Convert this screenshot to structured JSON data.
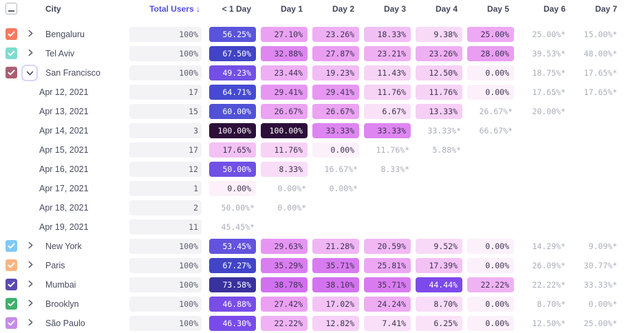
{
  "header": {
    "select_all_state": "indeterminate",
    "city_col": "City",
    "total_col": "Total Users ↓",
    "day_cols": [
      "< 1 Day",
      "Day 1",
      "Day 2",
      "Day 3",
      "Day 4",
      "Day 5",
      "Day 6",
      "Day 7"
    ]
  },
  "rows": [
    {
      "kind": "city",
      "label": "Bengaluru",
      "checked": true,
      "expanded": false,
      "checkbox_color": "#f4795f",
      "total": "100%",
      "cells": [
        "56.25%",
        "27.10%",
        "23.26%",
        "18.33%",
        "9.38%",
        "25.00%",
        "25.00%*",
        "15.00%*"
      ]
    },
    {
      "kind": "city",
      "label": "Tel Aviv",
      "checked": true,
      "expanded": false,
      "checkbox_color": "#7edcd0",
      "total": "100%",
      "cells": [
        "67.50%",
        "32.88%",
        "27.87%",
        "23.21%",
        "23.26%",
        "28.00%",
        "39.53%*",
        "48.00%*"
      ]
    },
    {
      "kind": "city",
      "label": "San Francisco",
      "checked": true,
      "expanded": true,
      "checkbox_color": "#aa5e74",
      "total": "100%",
      "cells": [
        "49.23%",
        "23.44%",
        "19.23%",
        "11.43%",
        "12.50%",
        "0.00%",
        "18.75%*",
        "17.65%*"
      ]
    },
    {
      "kind": "date",
      "label": "Apr 12, 2021",
      "total": "17",
      "cells": [
        "64.71%",
        "29.41%",
        "29.41%",
        "11.76%",
        "11.76%",
        "0.00%",
        "17.65%*",
        "17.65%*"
      ]
    },
    {
      "kind": "date",
      "label": "Apr 13, 2021",
      "total": "15",
      "cells": [
        "60.00%",
        "26.67%",
        "26.67%",
        "6.67%",
        "13.33%",
        "26.67%*",
        "20.00%*",
        null
      ]
    },
    {
      "kind": "date",
      "label": "Apr 14, 2021",
      "total": "3",
      "cells": [
        "100.00%",
        "100.00%",
        "33.33%",
        "33.33%",
        "33.33%*",
        "66.67%*",
        null,
        null
      ]
    },
    {
      "kind": "date",
      "label": "Apr 15, 2021",
      "total": "17",
      "cells": [
        "17.65%",
        "11.76%",
        "0.00%",
        "11.76%*",
        "5.88%*",
        null,
        null,
        null
      ]
    },
    {
      "kind": "date",
      "label": "Apr 16, 2021",
      "total": "12",
      "cells": [
        "50.00%",
        "8.33%",
        "16.67%*",
        "8.33%*",
        null,
        null,
        null,
        null
      ]
    },
    {
      "kind": "date",
      "label": "Apr 17, 2021",
      "total": "1",
      "cells": [
        "0.00%",
        "0.00%*",
        "0.00%*",
        null,
        null,
        null,
        null,
        null
      ]
    },
    {
      "kind": "date",
      "label": "Apr 18, 2021",
      "total": "2",
      "cells": [
        "50.00%*",
        "0.00%*",
        null,
        null,
        null,
        null,
        null,
        null
      ]
    },
    {
      "kind": "date",
      "label": "Apr 19, 2021",
      "total": "11",
      "cells": [
        "45.45%*",
        null,
        null,
        null,
        null,
        null,
        null,
        null
      ]
    },
    {
      "kind": "city",
      "label": "New York",
      "checked": true,
      "expanded": false,
      "checkbox_color": "#7ec9f5",
      "total": "100%",
      "cells": [
        "53.45%",
        "29.63%",
        "21.28%",
        "20.59%",
        "9.52%",
        "0.00%",
        "14.29%*",
        "9.09%*"
      ]
    },
    {
      "kind": "city",
      "label": "Paris",
      "checked": true,
      "expanded": false,
      "checkbox_color": "#f9b581",
      "total": "100%",
      "cells": [
        "67.27%",
        "35.29%",
        "35.71%",
        "25.81%",
        "17.39%",
        "0.00%",
        "26.09%*",
        "30.77%*"
      ]
    },
    {
      "kind": "city",
      "label": "Mumbai",
      "checked": true,
      "expanded": false,
      "checkbox_color": "#5a4ab3",
      "total": "100%",
      "cells": [
        "73.58%",
        "38.78%",
        "38.10%",
        "35.71%",
        "44.44%",
        "22.22%",
        "22.22%*",
        "33.33%*"
      ]
    },
    {
      "kind": "city",
      "label": "Brooklyn",
      "checked": true,
      "expanded": false,
      "checkbox_color": "#40b06a",
      "total": "100%",
      "cells": [
        "46.88%",
        "27.42%",
        "17.02%",
        "24.24%",
        "8.70%",
        "0.00%",
        "8.70%*",
        "0.00%*"
      ]
    },
    {
      "kind": "city",
      "label": "São Paulo",
      "checked": true,
      "expanded": false,
      "checkbox_color": "#c78ce8",
      "total": "100%",
      "cells": [
        "46.30%",
        "22.22%",
        "12.82%",
        "7.41%",
        "6.25%",
        "0.00%",
        "12.50%*",
        "25.00%*"
      ]
    }
  ],
  "heatmap": {
    "white_text_min": 43.9,
    "stops": [
      [
        0,
        "#fcf1fb"
      ],
      [
        5,
        "#fae6f9"
      ],
      [
        10,
        "#f8d8f7"
      ],
      [
        15,
        "#f5c9f5"
      ],
      [
        20,
        "#f1baf4"
      ],
      [
        24,
        "#eeadf3"
      ],
      [
        28,
        "#ea9ef2"
      ],
      [
        32,
        "#e18af1"
      ],
      [
        36,
        "#d87af0"
      ],
      [
        40,
        "#cf6cef"
      ],
      [
        43.99,
        "#c864ee"
      ],
      [
        44,
        "#7d49ec"
      ],
      [
        48,
        "#764fe7"
      ],
      [
        52,
        "#6952e0"
      ],
      [
        56,
        "#5a54da"
      ],
      [
        61,
        "#4f51d5"
      ],
      [
        66,
        "#4348cf"
      ],
      [
        70,
        "#3d3cb4"
      ],
      [
        74,
        "#39309a"
      ],
      [
        85,
        "#331f68"
      ],
      [
        100,
        "#2d0e39"
      ]
    ]
  },
  "ui_colors": {
    "header_text": "#42465a",
    "sorted_header": "#554fd8",
    "row_label": "#474c61",
    "total_cell_bg": "#f3f3f6",
    "total_cell_text": "#565d6d",
    "cell_text_dark": "#3d3354",
    "cell_text_light": "#ffffff",
    "starred_text": "#a9aeba",
    "focus_ring": "#d9d3f8",
    "checkbox_border": "#b3b7c4"
  },
  "icons": {
    "select_all": "minus-icon",
    "row_checked": "check-icon",
    "collapsed": "chevron-right-icon",
    "expanded": "chevron-down-icon"
  }
}
